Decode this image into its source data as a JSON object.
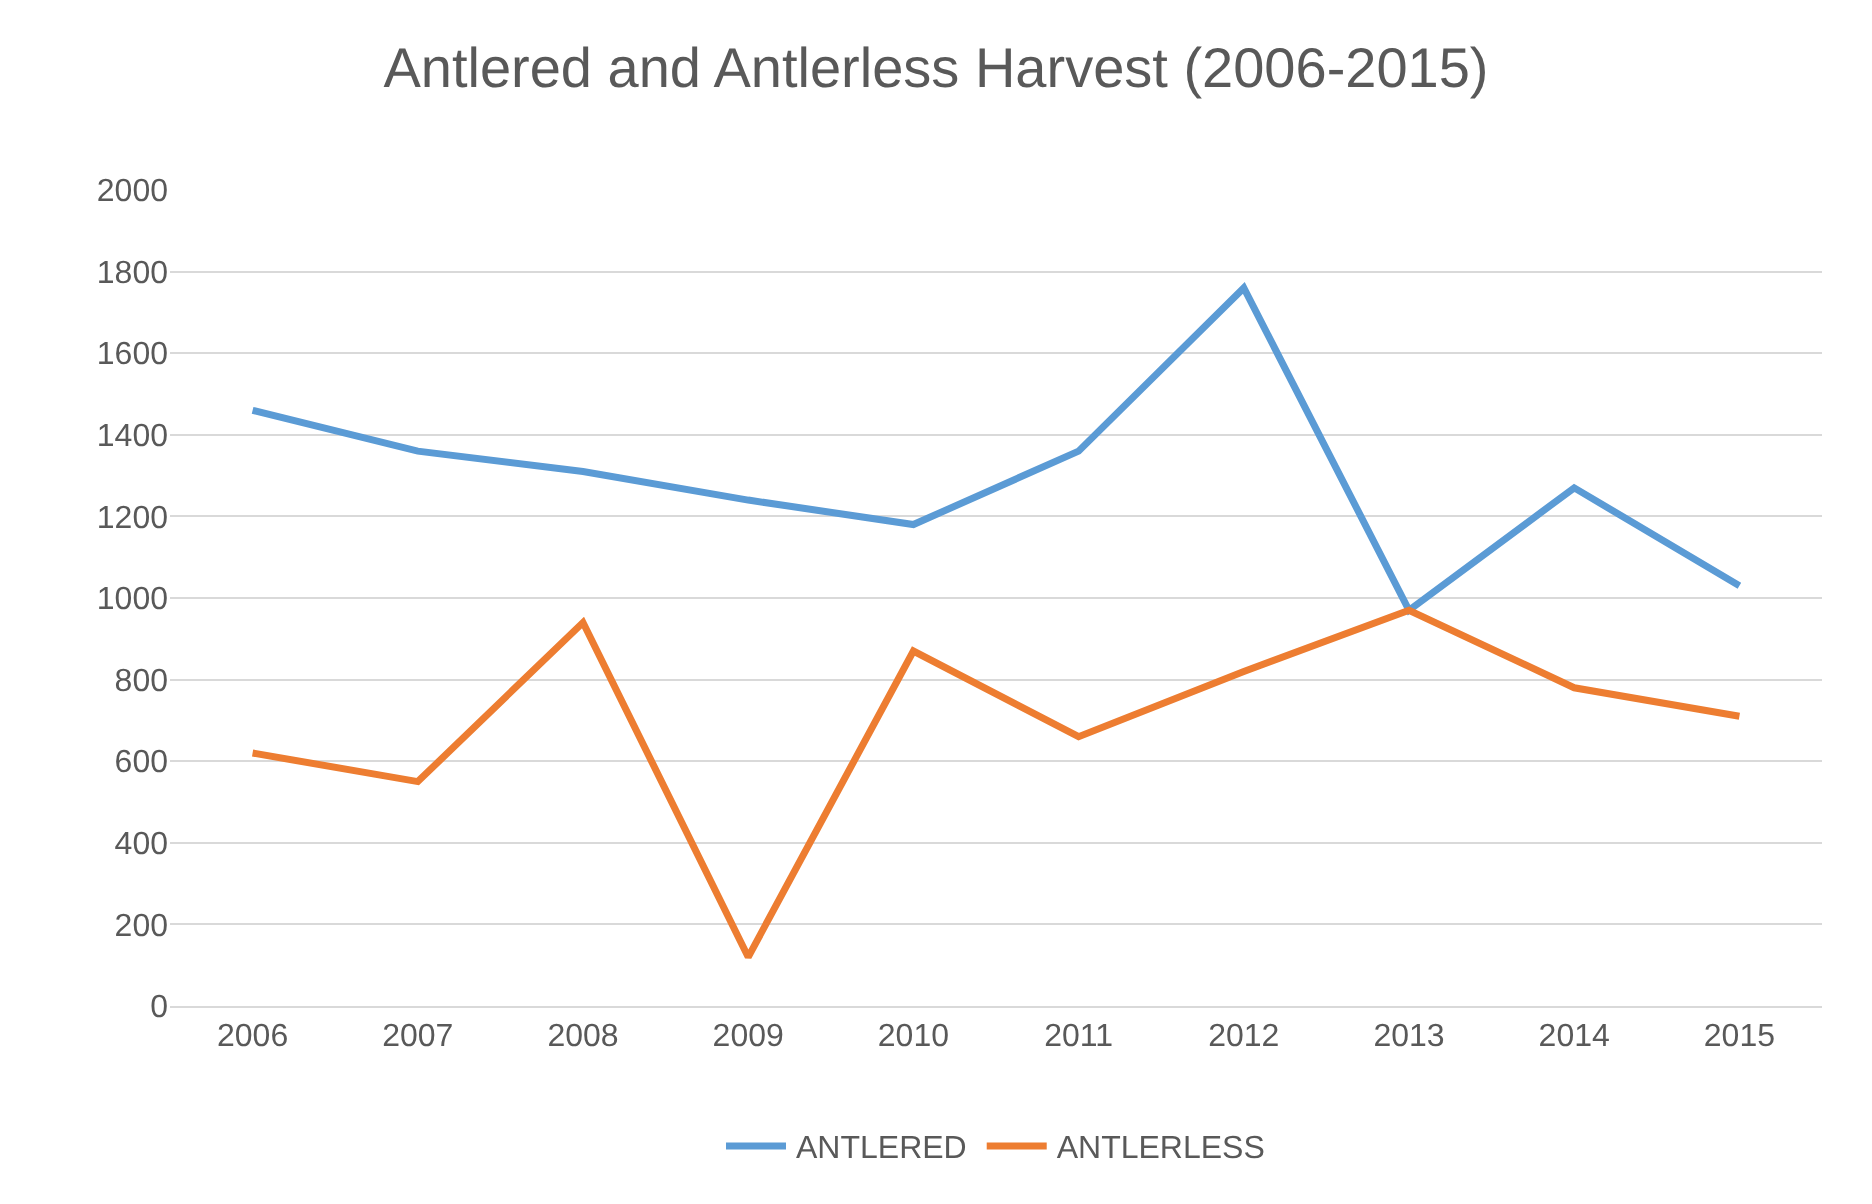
{
  "chart_data": {
    "type": "line",
    "title": "Antlered and Antlerless Harvest (2006-2015)",
    "categories": [
      "2006",
      "2007",
      "2008",
      "2009",
      "2010",
      "2011",
      "2012",
      "2013",
      "2014",
      "2015"
    ],
    "series": [
      {
        "name": "ANTLERED",
        "color": "#5b9bd5",
        "values": [
          1460,
          1360,
          1310,
          1240,
          1180,
          1360,
          1760,
          970,
          1270,
          1030
        ]
      },
      {
        "name": "ANTLERLESS",
        "color": "#ed7d31",
        "values": [
          620,
          550,
          940,
          120,
          870,
          660,
          820,
          970,
          780,
          710
        ]
      }
    ],
    "ylim": [
      0,
      2000
    ],
    "yticks": [
      0,
      200,
      400,
      600,
      800,
      1000,
      1200,
      1400,
      1600,
      1800,
      2000
    ],
    "grid": "y",
    "legend": "bottom",
    "marker": "none",
    "line_style": "solid"
  }
}
